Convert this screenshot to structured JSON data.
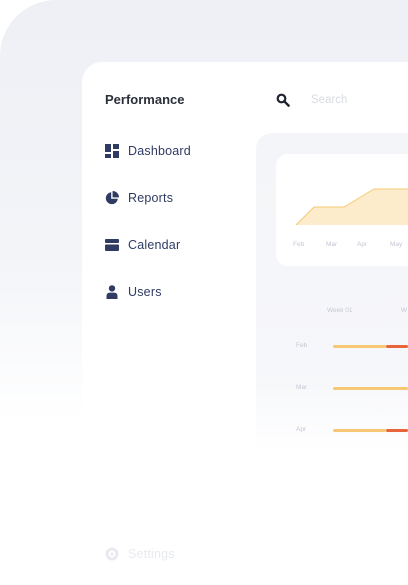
{
  "app": {
    "title": "Performance"
  },
  "search": {
    "placeholder": "Search",
    "icon": "search-icon"
  },
  "sidebar": {
    "items": [
      {
        "label": "Dashboard",
        "icon": "dashboard-icon"
      },
      {
        "label": "Reports",
        "icon": "pie-chart-icon"
      },
      {
        "label": "Calendar",
        "icon": "calendar-icon"
      },
      {
        "label": "Users",
        "icon": "user-icon"
      }
    ],
    "settings": {
      "label": "Settings",
      "icon": "gear-icon"
    }
  },
  "chart_data": {
    "type": "area",
    "categories": [
      "Feb",
      "Mar",
      "Apr",
      "May"
    ],
    "values": [
      0,
      1,
      2,
      2
    ],
    "ylim": [
      0,
      2
    ],
    "grid": false,
    "fill_color": "#fdeccb",
    "line_color": "#f7c873"
  },
  "timeline": {
    "week_headers": [
      "Week 01",
      "W"
    ],
    "rows": [
      {
        "label": "Feb",
        "segments": [
          {
            "color": "#f7c873"
          },
          {
            "color": "#e8653a"
          }
        ]
      },
      {
        "label": "Mar",
        "segments": [
          {
            "color": "#f7c873"
          }
        ]
      },
      {
        "label": "Apr",
        "segments": [
          {
            "color": "#f7c873"
          },
          {
            "color": "#e8653a"
          }
        ]
      }
    ]
  },
  "colors": {
    "accent_navy": "#2f3b63",
    "bar_yellow": "#f7c873",
    "bar_orange": "#e8653a"
  }
}
